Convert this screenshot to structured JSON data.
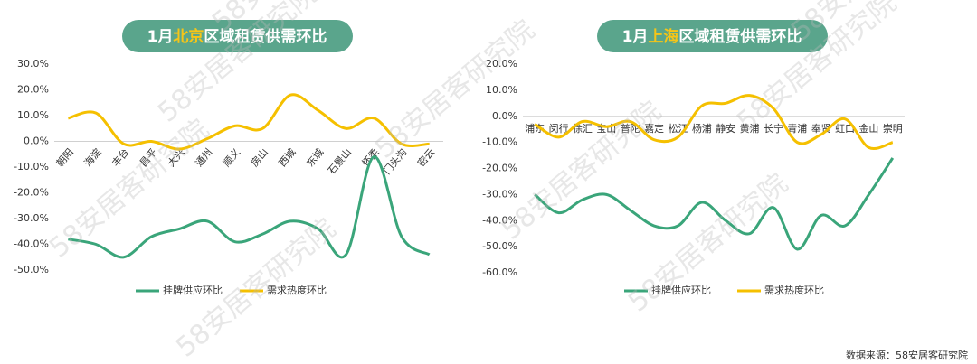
{
  "chart_data": [
    {
      "type": "line",
      "title_parts": [
        "1月",
        "北京",
        "区域租赁供需环比"
      ],
      "categories": [
        "朝阳",
        "海淀",
        "丰台",
        "昌平",
        "大兴",
        "通州",
        "顺义",
        "房山",
        "西城",
        "东城",
        "石景山",
        "怀柔",
        "门头沟",
        "密云"
      ],
      "series": [
        {
          "name": "挂牌供应环比",
          "color": "#3aa57a",
          "values": [
            -38,
            -40,
            -45,
            -37,
            -34,
            -31,
            -39,
            -36,
            -31,
            -34,
            -44,
            -6,
            -37,
            -44
          ]
        },
        {
          "name": "需求热度环比",
          "color": "#f5c000",
          "values": [
            9,
            11,
            -1,
            0,
            -3,
            1,
            6,
            5,
            18,
            12,
            5,
            9,
            -1,
            -1
          ]
        }
      ],
      "ylim": [
        -50,
        30
      ],
      "yticks": [
        {
          "value": -50,
          "label": "-50.0%"
        },
        {
          "value": -40,
          "label": "-40.0%"
        },
        {
          "value": -30,
          "label": "-30.0%"
        },
        {
          "value": -20,
          "label": "-20.0%"
        },
        {
          "value": -10,
          "label": "-10.0%"
        },
        {
          "value": 0,
          "label": "0.0%"
        },
        {
          "value": 10,
          "label": "10.0%"
        },
        {
          "value": 20,
          "label": "20.0%"
        },
        {
          "value": 30,
          "label": "30.0%"
        }
      ],
      "legend": "bottom"
    },
    {
      "type": "line",
      "title_parts": [
        "1月",
        "上海",
        "区域租赁供需环比"
      ],
      "categories": [
        "浦东",
        "闵行",
        "徐汇",
        "宝山",
        "普陀",
        "嘉定",
        "松江",
        "杨浦",
        "静安",
        "黄浦",
        "长宁",
        "青浦",
        "奉贤",
        "虹口",
        "金山",
        "崇明"
      ],
      "series": [
        {
          "name": "挂牌供应环比",
          "color": "#3aa57a",
          "values": [
            -30,
            -37,
            -32,
            -30,
            -36,
            -42,
            -42,
            -33,
            -40,
            -45,
            -35,
            -51,
            -38,
            -42,
            -30,
            -16
          ]
        },
        {
          "name": "需求热度环比",
          "color": "#f5c000",
          "values": [
            -3,
            -8,
            -2,
            -4,
            -2,
            -9,
            -8,
            4,
            5,
            8,
            3,
            -10,
            -7,
            -1,
            -12,
            -10
          ]
        }
      ],
      "ylim": [
        -60,
        20
      ],
      "yticks": [
        {
          "value": -60,
          "label": "-60.0%"
        },
        {
          "value": -50,
          "label": "-50.0%"
        },
        {
          "value": -40,
          "label": "-40.0%"
        },
        {
          "value": -30,
          "label": "-30.0%"
        },
        {
          "value": -20,
          "label": "-20.0%"
        },
        {
          "value": -10,
          "label": "-10.0%"
        },
        {
          "value": 0,
          "label": "0.0%"
        },
        {
          "value": 10,
          "label": "10.0%"
        },
        {
          "value": 20,
          "label": "20.0%"
        }
      ],
      "legend": "bottom"
    }
  ],
  "source": "数据来源：58安居客研究院",
  "watermark": "58安居客研究院"
}
